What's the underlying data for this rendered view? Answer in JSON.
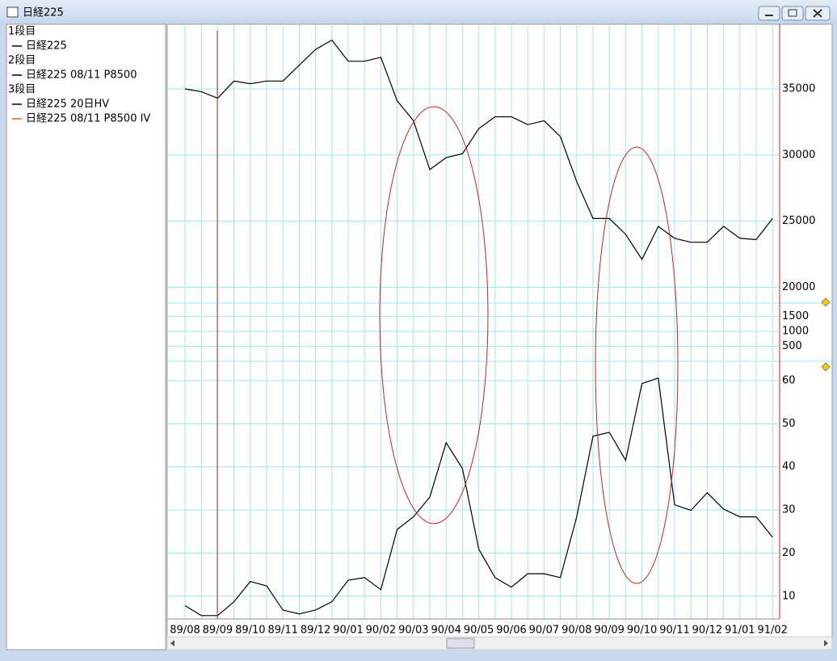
{
  "window": {
    "title": "日経225"
  },
  "legend": [
    {
      "label": "1段目"
    },
    {
      "label": "2段目"
    },
    {
      "label": "3段目"
    }
  ],
  "chart_data": [
    {
      "type": "line",
      "categories": [
        "89/08",
        null,
        "89/09",
        null,
        "89/10",
        null,
        "89/11",
        null,
        "89/12",
        null,
        "90/01",
        null,
        "90/02",
        null,
        "90/03",
        null,
        "90/04",
        null,
        "90/05",
        null,
        "90/06",
        null,
        "90/07",
        null,
        "90/08",
        null,
        "90/09",
        null,
        "90/10",
        null,
        "90/11",
        null,
        "90/12",
        null,
        "91/01",
        null,
        "91/02"
      ],
      "series": [
        {
          "name": "日経225",
          "color": "#000000",
          "values": [
            35000,
            34800,
            34300,
            35600,
            35400,
            35600,
            35600,
            36800,
            38000,
            38700,
            37100,
            37100,
            37400,
            34100,
            32600,
            28900,
            29800,
            30100,
            32000,
            32900,
            32900,
            32300,
            32600,
            31400,
            28000,
            25200,
            25200,
            24000,
            22100,
            24600,
            23700,
            23400,
            23400,
            24600,
            23700,
            23600,
            25200
          ]
        }
      ],
      "ylim": [
        18800,
        39900
      ],
      "yticks": [
        20000,
        25000,
        30000,
        35000
      ],
      "grid": true
    },
    {
      "type": "line",
      "series": [
        {
          "name": "日経225 08/11 P8500",
          "color": "#000000"
        }
      ],
      "ylim": [
        0,
        1950
      ],
      "yticks": [
        500,
        1000,
        1500
      ],
      "grid": true
    },
    {
      "type": "line",
      "categories": [
        "89/08",
        null,
        "89/09",
        null,
        "89/10",
        null,
        "89/11",
        null,
        "89/12",
        null,
        "90/01",
        null,
        "90/02",
        null,
        "90/03",
        null,
        "90/04",
        null,
        "90/05",
        null,
        "90/06",
        null,
        "90/07",
        null,
        "90/08",
        null,
        "90/09",
        null,
        "90/10",
        null,
        "90/11",
        null,
        "90/12",
        null,
        "91/01",
        null,
        "91/02"
      ],
      "series": [
        {
          "name": "日経225 20日HV",
          "color": "#000000",
          "values": [
            7.8,
            5.5,
            5.5,
            8.7,
            13.4,
            12.4,
            6.8,
            5.9,
            6.8,
            8.7,
            13.7,
            14.3,
            11.5,
            25.5,
            28.4,
            33,
            45.6,
            39.6,
            20.9,
            14.3,
            12.1,
            15.2,
            15.2,
            14.3,
            28.4,
            47.1,
            48,
            41.5,
            59.3,
            60.6,
            31.2,
            29.9,
            34,
            30.2,
            28.4,
            28.4,
            23.7
          ]
        },
        {
          "name": "日経225 08/11 P8500 IV",
          "color": "#e06020"
        }
      ],
      "ylim": [
        4.9,
        64.5
      ],
      "yticks": [
        10,
        20,
        30,
        40,
        50,
        60
      ],
      "grid": true
    }
  ]
}
